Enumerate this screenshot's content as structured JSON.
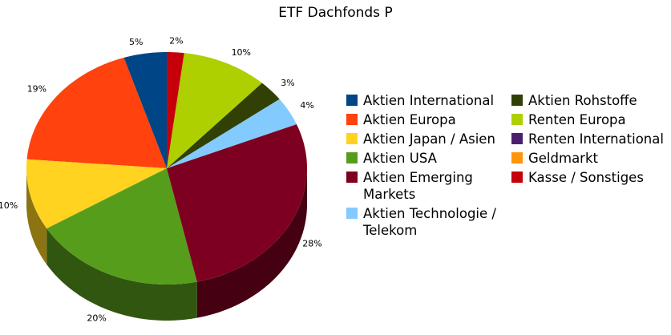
{
  "chart_data": {
    "type": "pie",
    "title": "ETF Dachfonds P",
    "categories": [
      "Aktien International",
      "Aktien Europa",
      "Aktien Japan / Asien",
      "Aktien USA",
      "Aktien Emerging Markets",
      "Aktien Technologie / Telekom",
      "Aktien Rohstoffe",
      "Renten Europa",
      "Renten International",
      "Geldmarkt",
      "Kasse / Sonstiges"
    ],
    "values": [
      5,
      19,
      10,
      20,
      28,
      4,
      3,
      10,
      0,
      0,
      2
    ],
    "value_labels": [
      "5%",
      "19%",
      "10%",
      "20%",
      "28%",
      "4%",
      "3%",
      "10%",
      null,
      null,
      "2%"
    ],
    "colors": [
      "#004586",
      "#ff420e",
      "#ffd320",
      "#579d1c",
      "#7e0021",
      "#83caff",
      "#314004",
      "#aecf00",
      "#4b1f6f",
      "#ff950e",
      "#c5000b"
    ]
  }
}
